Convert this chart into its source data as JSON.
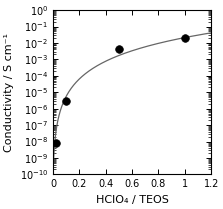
{
  "scatter_x": [
    0.02,
    0.1,
    0.5,
    1.0
  ],
  "scatter_y": [
    8e-09,
    3e-06,
    0.004,
    0.02
  ],
  "xlim": [
    0,
    1.2
  ],
  "ylim": [
    1e-10,
    1.0
  ],
  "xticks": [
    0,
    0.2,
    0.4,
    0.6,
    0.8,
    1.0,
    1.2
  ],
  "xlabel": "HClO₄ / TEOS",
  "ylabel": "Conductivity / S cm⁻¹",
  "curve_color": "#666666",
  "marker_color": "#000000",
  "background_color": "#ffffff",
  "tick_labelsize": 7,
  "xlabel_fontsize": 8,
  "ylabel_fontsize": 8,
  "curve_x0_offset": 0.005,
  "log_fit_extra_points_x": [
    0.001,
    0.005,
    0.02,
    0.1,
    0.5,
    1.0
  ],
  "log_fit_extra_points_y": [
    3e-10,
    2e-09,
    8e-09,
    3e-06,
    0.004,
    0.02
  ]
}
